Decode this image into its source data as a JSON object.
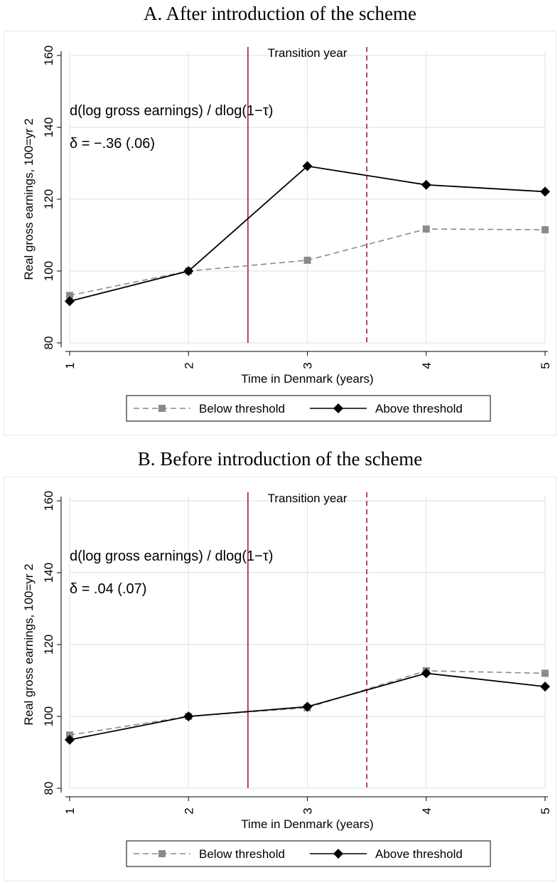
{
  "colors": {
    "grid": "#dde8ee",
    "transition_line": "#a8174a",
    "below": "#8a8a8a",
    "above": "#000000",
    "frame": "#e6eaec"
  },
  "chart_data": [
    {
      "type": "line",
      "title": "A. After introduction of the scheme",
      "xlabel": "Time in Denmark (years)",
      "ylabel": "Real gross earnings, 100=yr 2",
      "x": [
        1,
        2,
        3,
        4,
        5
      ],
      "xticks": [
        "1",
        "2",
        "3",
        "4",
        "5"
      ],
      "yticks": [
        "80",
        "100",
        "120",
        "140",
        "160"
      ],
      "xlim": [
        1,
        5
      ],
      "ylim": [
        80,
        160
      ],
      "grid": true,
      "series": [
        {
          "name": "Below threshold",
          "marker": "square",
          "style": "dashed",
          "values": [
            93.2,
            100,
            103.0,
            111.7,
            111.5
          ]
        },
        {
          "name": "Above threshold",
          "marker": "diamond",
          "style": "solid",
          "values": [
            91.6,
            100,
            129.2,
            124.0,
            122.1
          ]
        }
      ],
      "vlines": [
        {
          "x": 2.5,
          "style": "solid"
        },
        {
          "x": 3.5,
          "style": "dashed"
        }
      ],
      "transition_label": "Transition year",
      "annotation_line1": "d(log gross earnings) / dlog(1−τ)",
      "annotation_line2": "δ = −.36 (.06)",
      "legend_position": "bottom"
    },
    {
      "type": "line",
      "title": "B. Before introduction of the scheme",
      "xlabel": "Time in Denmark (years)",
      "ylabel": "Real gross earnings, 100=yr 2",
      "x": [
        1,
        2,
        3,
        4,
        5
      ],
      "xticks": [
        "1",
        "2",
        "3",
        "4",
        "5"
      ],
      "yticks": [
        "80",
        "100",
        "120",
        "140",
        "160"
      ],
      "xlim": [
        1,
        5
      ],
      "ylim": [
        80,
        160
      ],
      "grid": true,
      "series": [
        {
          "name": "Below threshold",
          "marker": "square",
          "style": "dashed",
          "values": [
            94.8,
            100,
            102.4,
            112.7,
            112.0
          ]
        },
        {
          "name": "Above threshold",
          "marker": "diamond",
          "style": "solid",
          "values": [
            93.5,
            100,
            102.7,
            112.0,
            108.3
          ]
        }
      ],
      "vlines": [
        {
          "x": 2.5,
          "style": "solid"
        },
        {
          "x": 3.5,
          "style": "dashed"
        }
      ],
      "transition_label": "Transition year",
      "annotation_line1": "d(log gross earnings) / dlog(1−τ)",
      "annotation_line2": "δ = .04 (.07)",
      "legend_position": "bottom"
    }
  ]
}
